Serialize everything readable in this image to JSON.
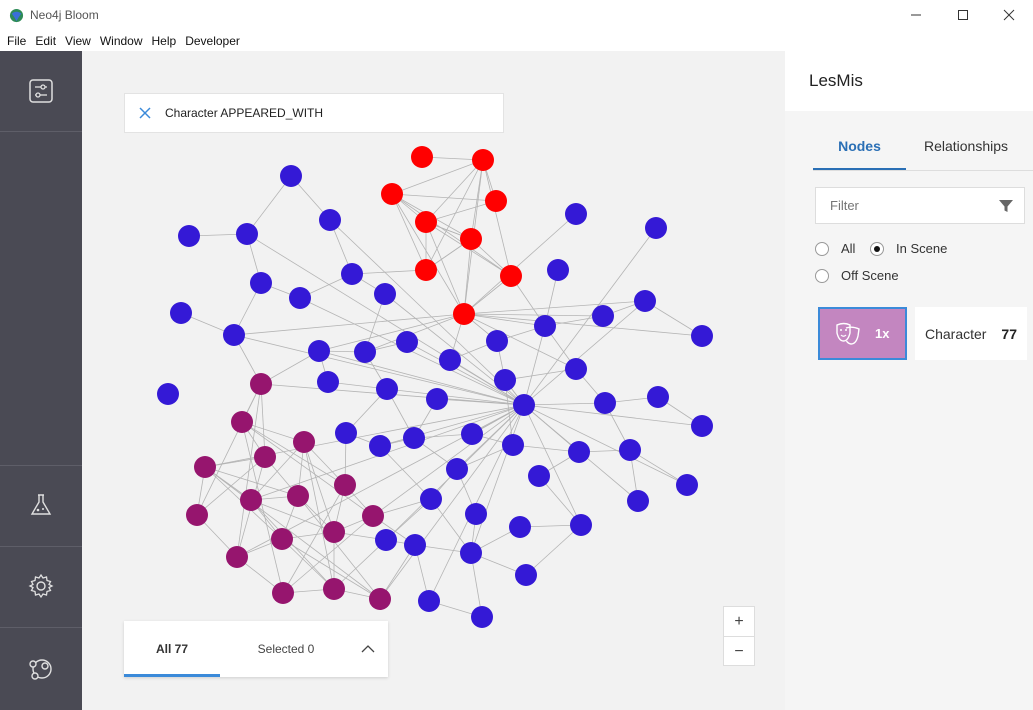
{
  "window": {
    "title": "Neo4j Bloom"
  },
  "menu": [
    "File",
    "Edit",
    "View",
    "Window",
    "Help",
    "Developer"
  ],
  "search": {
    "query": "Character APPEARED_WITH"
  },
  "bottom_bar": {
    "all_label": "All 77",
    "selected_label": "Selected 0"
  },
  "zoom": {
    "in": "+",
    "out": "−"
  },
  "panel": {
    "perspective_name": "LesMis",
    "tabs": {
      "nodes": "Nodes",
      "relationships": "Relationships"
    },
    "filter_placeholder": "Filter",
    "radio": {
      "all": "All",
      "in_scene": "In Scene",
      "off_scene": "Off Scene",
      "selected": "In Scene"
    },
    "category": {
      "name": "Character",
      "count": "77",
      "multiplier": "1x",
      "color": "#c386c0",
      "icon": "theater-masks-icon"
    }
  },
  "colors": {
    "blue": "#3419d6",
    "red": "#ff0000",
    "purple": "#96156e",
    "accent": "#2a6fb5"
  }
}
